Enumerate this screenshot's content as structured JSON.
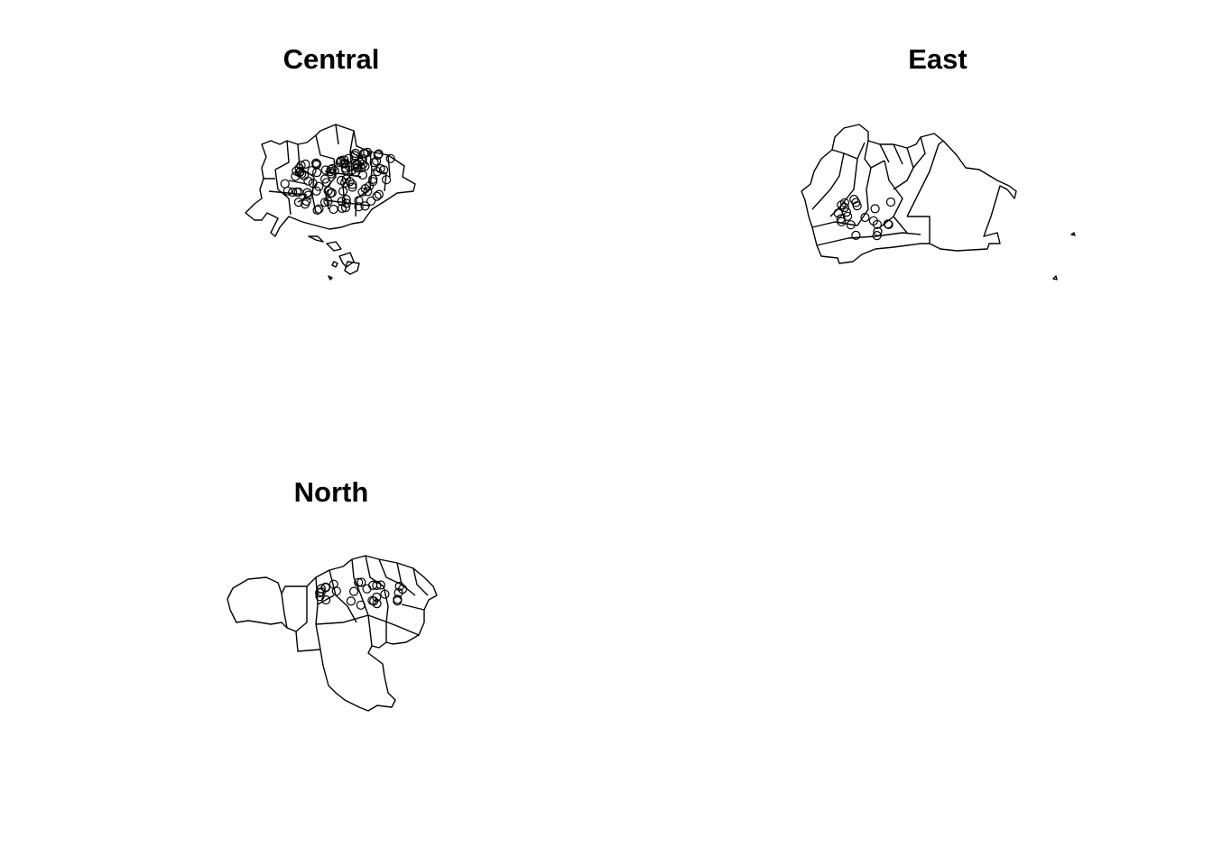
{
  "panels": [
    {
      "id": "central",
      "title": "Central"
    },
    {
      "id": "east",
      "title": "East"
    },
    {
      "id": "north",
      "title": "North"
    }
  ]
}
